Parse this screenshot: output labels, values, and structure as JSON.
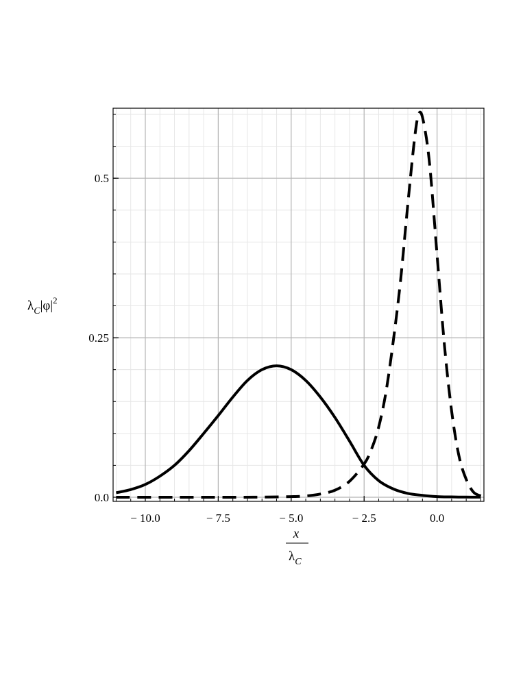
{
  "chart_data": {
    "type": "line",
    "title": "",
    "xlabel": {
      "numerator": "x",
      "denominator": "λ",
      "denominator_sub": "C"
    },
    "ylabel": {
      "prefix": "λ",
      "prefix_sub": "C",
      "body": "|φ|",
      "power": "2"
    },
    "xlim": [
      -11.0,
      1.5
    ],
    "ylim": [
      0.0,
      0.6
    ],
    "x_ticks": [
      -10.0,
      -7.5,
      -5.0,
      -2.5,
      0.0
    ],
    "x_tick_labels": [
      "− 10.0",
      "− 7.5",
      "− 5.0",
      "− 2.5",
      "0.0"
    ],
    "y_ticks": [
      0.0,
      0.25,
      0.5
    ],
    "y_tick_labels": [
      "0.0",
      "0.25",
      "0.5"
    ],
    "grid": true,
    "series": [
      {
        "style": "solid",
        "color": "#000000",
        "x": [
          -11.0,
          -10.5,
          -10.0,
          -9.5,
          -9.0,
          -8.5,
          -8.0,
          -7.5,
          -7.0,
          -6.5,
          -6.0,
          -5.5,
          -5.0,
          -4.5,
          -4.0,
          -3.5,
          -3.0,
          -2.5,
          -2.0,
          -1.5,
          -1.0,
          -0.5,
          0.0,
          0.5,
          1.0,
          1.5
        ],
        "values": [
          0.007,
          0.012,
          0.02,
          0.033,
          0.05,
          0.073,
          0.1,
          0.128,
          0.157,
          0.183,
          0.2,
          0.206,
          0.2,
          0.183,
          0.157,
          0.125,
          0.088,
          0.05,
          0.026,
          0.013,
          0.006,
          0.003,
          0.001,
          0.0005,
          0.0002,
          0.0001
        ]
      },
      {
        "style": "dashed",
        "color": "#000000",
        "x": [
          -11.0,
          -9.0,
          -7.0,
          -6.0,
          -5.0,
          -4.5,
          -4.0,
          -3.5,
          -3.0,
          -2.5,
          -2.25,
          -2.0,
          -1.75,
          -1.5,
          -1.25,
          -1.0,
          -0.75,
          -0.6,
          -0.45,
          -0.25,
          0.0,
          0.25,
          0.5,
          0.75,
          1.0,
          1.25,
          1.5
        ],
        "values": [
          0.0,
          0.0,
          0.0,
          0.0002,
          0.001,
          0.002,
          0.005,
          0.011,
          0.025,
          0.052,
          0.075,
          0.11,
          0.165,
          0.245,
          0.34,
          0.46,
          0.57,
          0.603,
          0.585,
          0.52,
          0.38,
          0.24,
          0.135,
          0.065,
          0.028,
          0.008,
          0.002
        ]
      }
    ]
  }
}
